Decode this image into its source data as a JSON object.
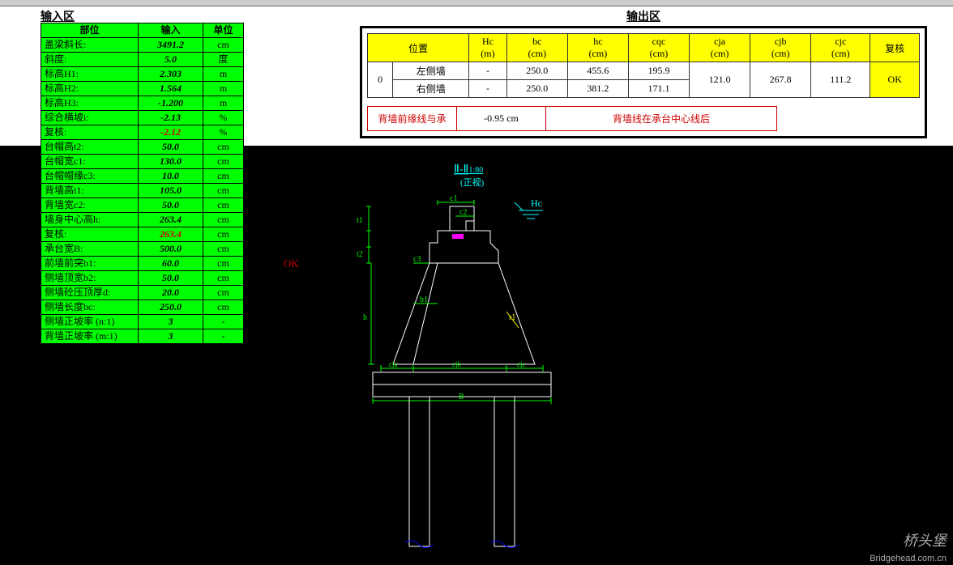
{
  "input": {
    "title": "输入区",
    "headers": [
      "部位",
      "输入",
      "单位"
    ],
    "rows": [
      {
        "label": "盖梁斜长:",
        "value": "3491.2",
        "unit": "cm",
        "red": false
      },
      {
        "label": "斜度:",
        "value": "5.0",
        "unit": "度",
        "red": false
      },
      {
        "label": "标高H1:",
        "value": "2.303",
        "unit": "m",
        "red": false
      },
      {
        "label": "标高H2:",
        "value": "1.564",
        "unit": "m",
        "red": false
      },
      {
        "label": "标高H3:",
        "value": "-1.200",
        "unit": "m",
        "red": false
      },
      {
        "label": "综合横坡i:",
        "value": "-2.13",
        "unit": "%",
        "red": false
      },
      {
        "label": "复核:",
        "value": "-2.12",
        "unit": "%",
        "red": true
      },
      {
        "label": "台帽高t2:",
        "value": "50.0",
        "unit": "cm",
        "red": false
      },
      {
        "label": "台帽宽c1:",
        "value": "130.0",
        "unit": "cm",
        "red": false
      },
      {
        "label": "台帽帽缘c3:",
        "value": "10.0",
        "unit": "cm",
        "red": false
      },
      {
        "label": "背墙高t1:",
        "value": "105.0",
        "unit": "cm",
        "red": false
      },
      {
        "label": "背墙宽c2:",
        "value": "50.0",
        "unit": "cm",
        "red": false
      },
      {
        "label": "墙身中心高h:",
        "value": "263.4",
        "unit": "cm",
        "red": false
      },
      {
        "label": "复核:",
        "value": "263.4",
        "unit": "cm",
        "red": true
      },
      {
        "label": "承台宽B:",
        "value": "500.0",
        "unit": "cm",
        "red": false
      },
      {
        "label": "前墙前突b1:",
        "value": "60.0",
        "unit": "cm",
        "red": false
      },
      {
        "label": "侧墙顶宽b2:",
        "value": "50.0",
        "unit": "cm",
        "red": false
      },
      {
        "label": "侧墙砼压顶厚d:",
        "value": "20.0",
        "unit": "cm",
        "red": false
      },
      {
        "label": "侧墙长度bc:",
        "value": "250.0",
        "unit": "cm",
        "red": false
      },
      {
        "label": "侧墙正坡率 (n:1)",
        "value": "3",
        "unit": "-",
        "red": false
      },
      {
        "label": "背墙正坡率 (m:1)",
        "value": "3",
        "unit": "-",
        "red": false
      }
    ],
    "ok_label": "OK"
  },
  "output": {
    "title": "输出区",
    "headers": [
      "位置",
      "Hc\n(m)",
      "bc\n(cm)",
      "hc\n(cm)",
      "cqc\n(cm)",
      "cja\n(cm)",
      "cjb\n(cm)",
      "cjc\n(cm)",
      "复核"
    ],
    "group": "0",
    "rows": [
      {
        "pos": "左侧墙",
        "hc_m": "-",
        "bc": "250.0",
        "hc": "455.6",
        "cqc": "195.9"
      },
      {
        "pos": "右侧墙",
        "hc_m": "-",
        "bc": "250.0",
        "hc": "381.2",
        "cqc": "171.1"
      }
    ],
    "merged": {
      "cja": "121.0",
      "cjb": "267.8",
      "cjc": "111.2",
      "recheck": "OK"
    },
    "info": {
      "label": "背墙前缘线与承",
      "value": "-0.95  cm",
      "note": "背墙线在承台中心线后"
    }
  },
  "cad": {
    "title": "Ⅱ-Ⅱ",
    "scale": "1:80",
    "subtitle": "(正视)",
    "labels": {
      "Hc": "Hc",
      "c1": "c1",
      "c2": "c2",
      "c3": "c3",
      "t1": "t1",
      "t2": "t2",
      "h": "h",
      "b1": "b1",
      "r1": "r1",
      "cja": "cja",
      "cjb": "cjb",
      "cjc": "cjc",
      "B": "B"
    },
    "colors": {
      "white": "#ffffff",
      "cyan": "#00ffff",
      "green": "#00ff00",
      "yellow": "#ffff00",
      "magenta": "#ff00ff",
      "blue": "#0000ff"
    }
  },
  "watermark": {
    "zh": "桥头堡",
    "en": "Bridgehead.com.cn"
  }
}
